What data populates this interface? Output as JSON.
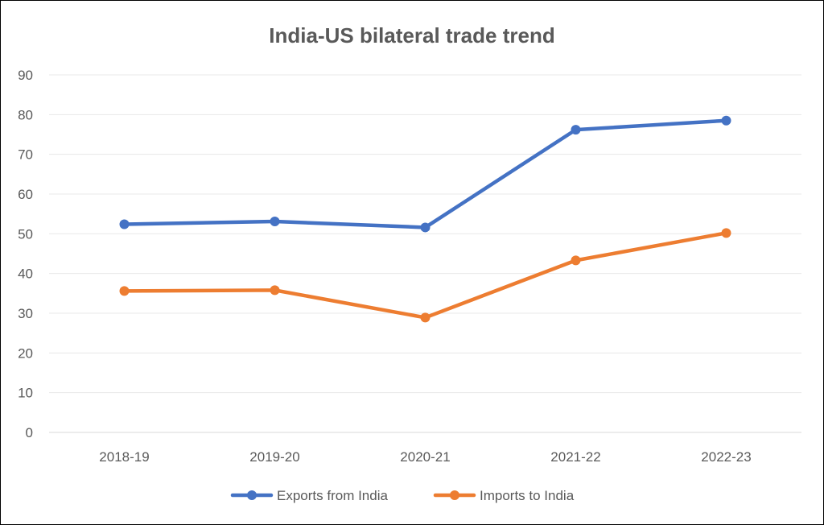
{
  "chart_data": {
    "type": "line",
    "title": "India-US bilateral trade trend",
    "xlabel": "",
    "ylabel": "",
    "categories": [
      "2018-19",
      "2019-20",
      "2020-21",
      "2021-22",
      "2022-23"
    ],
    "ylim": [
      0,
      90
    ],
    "yticks": [
      0,
      10,
      20,
      30,
      40,
      50,
      60,
      70,
      80,
      90
    ],
    "grid": true,
    "legend_position": "bottom",
    "series": [
      {
        "name": "Exports from India",
        "color": "#4472C4",
        "values": [
          52.4,
          53.1,
          51.6,
          76.2,
          78.5
        ]
      },
      {
        "name": "Imports to India",
        "color": "#ED7D31",
        "values": [
          35.6,
          35.8,
          28.9,
          43.3,
          50.2
        ]
      }
    ]
  }
}
